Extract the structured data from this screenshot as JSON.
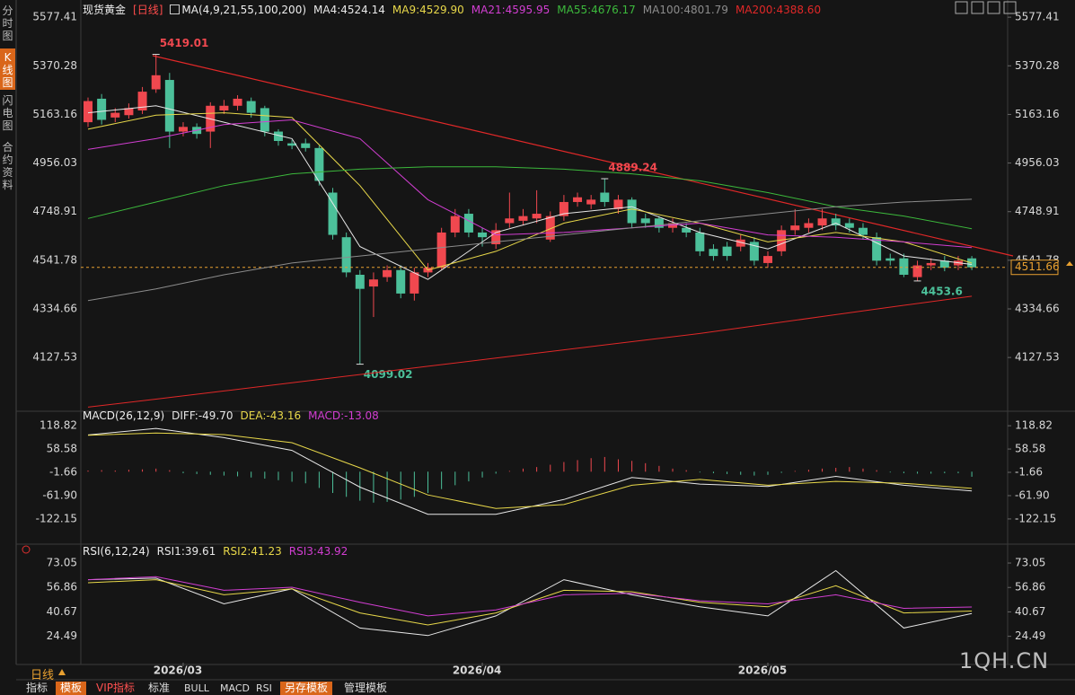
{
  "chart_data": [
    {
      "type": "candlestick",
      "title": "现货黄金",
      "period_tag": "[日线]",
      "indicator": "MA(4,9,21,55,100,200)",
      "separator": ":",
      "up_color": "#f0484f",
      "down_color": "#4cc09a",
      "current_color": "#e8a030",
      "open": [
        5130,
        5230,
        5150,
        5160,
        5180,
        5270,
        5310,
        5090,
        5110,
        5090,
        5180,
        5200,
        5220,
        5190,
        5090,
        5040,
        5040,
        5020,
        4830,
        4640,
        4480,
        4430,
        4470,
        4500,
        4400,
        4490,
        4510,
        4660,
        4740,
        4660,
        4610,
        4700,
        4710,
        4720,
        4630,
        4730,
        4790,
        4780,
        4830,
        4760,
        4800,
        4720,
        4720,
        4680,
        4680,
        4660,
        4590,
        4600,
        4600,
        4620,
        4530,
        4580,
        4670,
        4680,
        4690,
        4720,
        4700,
        4680,
        4640,
        4550,
        4550,
        4470,
        4520,
        4540,
        4520,
        4550
      ],
      "high": [
        5235,
        5250,
        5190,
        5210,
        5280,
        5419.01,
        5340,
        5130,
        5125,
        5215,
        5225,
        5245,
        5235,
        5200,
        5100,
        5055,
        5060,
        5030,
        4850,
        4660,
        4500,
        4490,
        4520,
        4520,
        4510,
        4530,
        4680,
        4760,
        4760,
        4680,
        4700,
        4830,
        4760,
        4840,
        4750,
        4820,
        4830,
        4820,
        4889.24,
        4820,
        4810,
        4740,
        4730,
        4720,
        4700,
        4680,
        4610,
        4620,
        4650,
        4640,
        4580,
        4690,
        4760,
        4720,
        4760,
        4740,
        4720,
        4700,
        4660,
        4570,
        4570,
        4540,
        4550,
        4560,
        4560,
        4560
      ],
      "low": [
        5110,
        5120,
        5130,
        5145,
        5165,
        5255,
        5020,
        5070,
        5060,
        5020,
        5165,
        5180,
        5150,
        5070,
        5030,
        5015,
        5005,
        4860,
        4630,
        4470,
        4099.02,
        4300,
        4450,
        4380,
        4370,
        4470,
        4500,
        4640,
        4640,
        4600,
        4590,
        4680,
        4690,
        4700,
        4620,
        4710,
        4770,
        4760,
        4770,
        4740,
        4680,
        4680,
        4660,
        4660,
        4640,
        4560,
        4540,
        4540,
        4580,
        4520,
        4510,
        4560,
        4650,
        4660,
        4670,
        4670,
        4660,
        4630,
        4520,
        4520,
        4470,
        4453.6,
        4500,
        4495,
        4500,
        4500
      ],
      "close": [
        5220,
        5140,
        5170,
        5190,
        5260,
        5330,
        5090,
        5110,
        5080,
        5200,
        5200,
        5230,
        5170,
        5090,
        5050,
        5030,
        5020,
        4880,
        4650,
        4490,
        4420,
        4460,
        4500,
        4400,
        4490,
        4510,
        4660,
        4730,
        4660,
        4640,
        4670,
        4720,
        4730,
        4740,
        4730,
        4790,
        4810,
        4800,
        4790,
        4800,
        4700,
        4700,
        4680,
        4700,
        4660,
        4580,
        4560,
        4560,
        4630,
        4540,
        4560,
        4670,
        4690,
        4700,
        4720,
        4690,
        4680,
        4650,
        4540,
        4540,
        4480,
        4520,
        4530,
        4510,
        4540,
        4511.66
      ],
      "ylim": [
        3910,
        5620
      ],
      "yticks": [
        5577.41,
        5370.28,
        5163.16,
        4956.03,
        4748.91,
        4541.78,
        4334.66,
        4127.53
      ],
      "xticks": [
        {
          "value": 7,
          "label": "2026/03"
        },
        {
          "value": 29,
          "label": "2026/04"
        },
        {
          "value": 50,
          "label": "2026/05"
        }
      ],
      "series": [
        {
          "name": "MA4",
          "color": "#e8e8e8",
          "last_label": "4524.14",
          "x": [
            0,
            5,
            10,
            15,
            20,
            25,
            30,
            35,
            40,
            45,
            50,
            55,
            60,
            65
          ],
          "values": [
            5170,
            5200,
            5130,
            5060,
            4600,
            4460,
            4660,
            4740,
            4770,
            4660,
            4590,
            4700,
            4560,
            4524.14
          ]
        },
        {
          "name": "MA9",
          "color": "#e8d84a",
          "last_label": "4529.90",
          "x": [
            0,
            5,
            10,
            15,
            20,
            25,
            30,
            35,
            40,
            45,
            50,
            55,
            60,
            65
          ],
          "values": [
            5100,
            5160,
            5170,
            5150,
            4860,
            4500,
            4580,
            4700,
            4760,
            4700,
            4620,
            4660,
            4620,
            4529.9
          ]
        },
        {
          "name": "MA21",
          "color": "#d23ed2",
          "last_label": "4595.95",
          "x": [
            0,
            5,
            10,
            15,
            20,
            25,
            30,
            35,
            40,
            45,
            50,
            55,
            60,
            65
          ],
          "values": [
            5014,
            5060,
            5120,
            5140,
            5060,
            4800,
            4650,
            4660,
            4680,
            4700,
            4650,
            4640,
            4620,
            4595.95
          ]
        },
        {
          "name": "MA55",
          "color": "#3cb93c",
          "last_label": "4676.17",
          "x": [
            0,
            5,
            10,
            15,
            20,
            25,
            30,
            35,
            40,
            45,
            50,
            55,
            60,
            65
          ],
          "values": [
            4720,
            4790,
            4860,
            4910,
            4930,
            4940,
            4940,
            4930,
            4910,
            4880,
            4830,
            4770,
            4730,
            4676.17
          ]
        },
        {
          "name": "MA100",
          "color": "#8c8c8c",
          "last_label": "4801.79",
          "x": [
            0,
            5,
            10,
            15,
            20,
            25,
            30,
            35,
            40,
            45,
            50,
            55,
            60,
            65
          ],
          "values": [
            4370,
            4420,
            4480,
            4530,
            4560,
            4590,
            4620,
            4650,
            4680,
            4710,
            4740,
            4770,
            4790,
            4801.79
          ]
        },
        {
          "name": "MA200",
          "color": "#e02828",
          "last_label": "4388.60",
          "x": [
            0,
            5,
            10,
            15,
            20,
            25,
            30,
            35,
            40,
            45,
            50,
            55,
            60,
            65
          ],
          "values": [
            3916,
            3950,
            3985,
            4020,
            4055,
            4090,
            4125,
            4160,
            4195,
            4230,
            4270,
            4310,
            4350,
            4388.6
          ]
        }
      ]
    },
    {
      "type": "macd",
      "indicator": "MACD(26,12,9)",
      "separator": ":",
      "name": "MACD",
      "legend_color": "#d23ed2",
      "last_label": "-13.08",
      "up_color": "#f0484f",
      "down_color": "#4cc09a",
      "values": [
        3,
        4,
        3,
        5,
        6,
        8,
        4,
        -4,
        -6,
        -8,
        -10,
        -12,
        -15,
        -18,
        -22,
        -26,
        -30,
        -42,
        -55,
        -65,
        -75,
        -80,
        -78,
        -72,
        -65,
        -55,
        -45,
        -35,
        -25,
        -15,
        -5,
        2,
        8,
        12,
        18,
        25,
        30,
        35,
        38,
        32,
        28,
        22,
        15,
        8,
        4,
        -2,
        -4,
        -6,
        -8,
        -10,
        -8,
        -3,
        2,
        5,
        8,
        10,
        12,
        8,
        4,
        -2,
        -4,
        -5,
        -5,
        -4,
        -4,
        -13.08
      ],
      "ylim": [
        -185,
        140
      ],
      "yticks": [
        118.82,
        58.58,
        -1.66,
        {
          "value": -61.9,
          "label": "-61.90"
        },
        -122.15
      ],
      "series": [
        {
          "name": "DIFF",
          "color": "#e8e8e8",
          "last_label": "-49.70",
          "x": [
            0,
            5,
            10,
            15,
            20,
            25,
            30,
            35,
            40,
            45,
            50,
            55,
            60,
            65
          ],
          "values": [
            95,
            112,
            88,
            55,
            -40,
            -110,
            -110,
            -72,
            -15,
            -32,
            -38,
            -12,
            -35,
            -49.7
          ]
        },
        {
          "name": "DEA",
          "color": "#e8d84a",
          "last_label": "-43.16",
          "x": [
            0,
            5,
            10,
            15,
            20,
            25,
            30,
            35,
            40,
            45,
            50,
            55,
            60,
            65
          ],
          "values": [
            94,
            100,
            96,
            75,
            10,
            -60,
            -95,
            -85,
            -35,
            -20,
            -35,
            -25,
            -30,
            -43.16
          ]
        }
      ]
    },
    {
      "type": "line",
      "indicator": "RSI(6,12,24)",
      "separator": ":",
      "ylim": [
        7,
        82
      ],
      "yticks": [
        73.05,
        56.86,
        40.67,
        24.49
      ],
      "series": [
        {
          "name": "RSI1",
          "color": "#e8e8e8",
          "last_label": "39.61",
          "x": [
            0,
            5,
            10,
            15,
            20,
            25,
            30,
            35,
            40,
            45,
            50,
            55,
            60,
            65
          ],
          "values": [
            62,
            63,
            46,
            56,
            30,
            25,
            38,
            62,
            52,
            44,
            38,
            68,
            30,
            39.61
          ]
        },
        {
          "name": "RSI2",
          "color": "#e8d84a",
          "last_label": "41.23",
          "x": [
            0,
            5,
            10,
            15,
            20,
            25,
            30,
            35,
            40,
            45,
            50,
            55,
            60,
            65
          ],
          "values": [
            60,
            62,
            52,
            56,
            40,
            32,
            40,
            55,
            54,
            47,
            44,
            58,
            40,
            41.23
          ]
        },
        {
          "name": "RSI3",
          "color": "#d23ed2",
          "last_label": "43.92",
          "x": [
            0,
            5,
            10,
            15,
            20,
            25,
            30,
            35,
            40,
            45,
            50,
            55,
            60,
            65
          ],
          "values": [
            62,
            64,
            55,
            57,
            47,
            38,
            42,
            52,
            53,
            48,
            46,
            52,
            43,
            43.92
          ]
        }
      ]
    }
  ],
  "ui": {
    "side_tabs": [
      "分时图",
      "K线图",
      "闪电图",
      "合约资料"
    ],
    "period_button": "日线",
    "bottom_tabs": [
      "指标",
      "模板",
      "VIP指标",
      "标准",
      "BULL",
      "MACD",
      "RSI",
      "另存模板",
      "管理模板"
    ],
    "watermark": "1QH.CN"
  }
}
